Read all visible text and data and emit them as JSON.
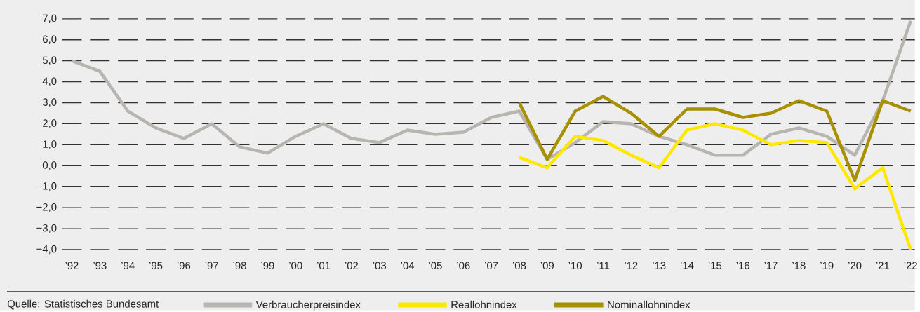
{
  "chart_data": {
    "type": "line",
    "categories": [
      "’92",
      "’93",
      "’94",
      "’95",
      "’96",
      "’97",
      "’98",
      "’99",
      "’00",
      "’01",
      "’02",
      "’03",
      "’04",
      "’05",
      "’06",
      "’07",
      "’08",
      "’09",
      "’10",
      "’11",
      "’12",
      "’13",
      "’14",
      "’15",
      "’16",
      "’17",
      "’18",
      "’19",
      "’20",
      "’21",
      "’22"
    ],
    "series": [
      {
        "name": "Verbraucherpreisindex",
        "color": "#b8b5b0",
        "values": [
          5.0,
          4.5,
          2.6,
          1.8,
          1.3,
          2.0,
          0.9,
          0.6,
          1.4,
          2.0,
          1.3,
          1.1,
          1.7,
          1.5,
          1.6,
          2.3,
          2.6,
          0.3,
          1.1,
          2.1,
          2.0,
          1.4,
          1.0,
          0.5,
          0.5,
          1.5,
          1.8,
          1.4,
          0.5,
          3.1,
          6.9
        ]
      },
      {
        "name": "Reallohnindex",
        "color": "#ffe800",
        "values": [
          null,
          null,
          null,
          null,
          null,
          null,
          null,
          null,
          null,
          null,
          null,
          null,
          null,
          null,
          null,
          null,
          0.4,
          -0.1,
          1.4,
          1.2,
          0.5,
          -0.1,
          1.7,
          2.0,
          1.7,
          1.0,
          1.2,
          1.1,
          -1.1,
          -0.1,
          -4.0
        ]
      },
      {
        "name": "Nominallohnindex",
        "color": "#a89000",
        "values": [
          null,
          null,
          null,
          null,
          null,
          null,
          null,
          null,
          null,
          null,
          null,
          null,
          null,
          null,
          null,
          null,
          3.0,
          0.3,
          2.6,
          3.3,
          2.5,
          1.4,
          2.7,
          2.7,
          2.3,
          2.5,
          3.1,
          2.6,
          -0.7,
          3.1,
          2.6
        ]
      }
    ],
    "ylim": [
      -4,
      7
    ],
    "yticks": [
      {
        "value": -4,
        "label": "−4,0"
      },
      {
        "value": -3,
        "label": "−3,0"
      },
      {
        "value": -2,
        "label": "−2,0"
      },
      {
        "value": -1,
        "label": "−1,0"
      },
      {
        "value": 0,
        "label": "0,0"
      },
      {
        "value": 1,
        "label": "1,0"
      },
      {
        "value": 2,
        "label": "2,0"
      },
      {
        "value": 3,
        "label": "3,0"
      },
      {
        "value": 4,
        "label": "4,0"
      },
      {
        "value": 5,
        "label": "5,0"
      },
      {
        "value": 6,
        "label": "6,0"
      },
      {
        "value": 7,
        "label": "7,0"
      }
    ],
    "grid": "y",
    "legend": "bottom",
    "line_style": "solid",
    "annotations": [
      "Quelle: Statistisches Bundesamt"
    ]
  }
}
